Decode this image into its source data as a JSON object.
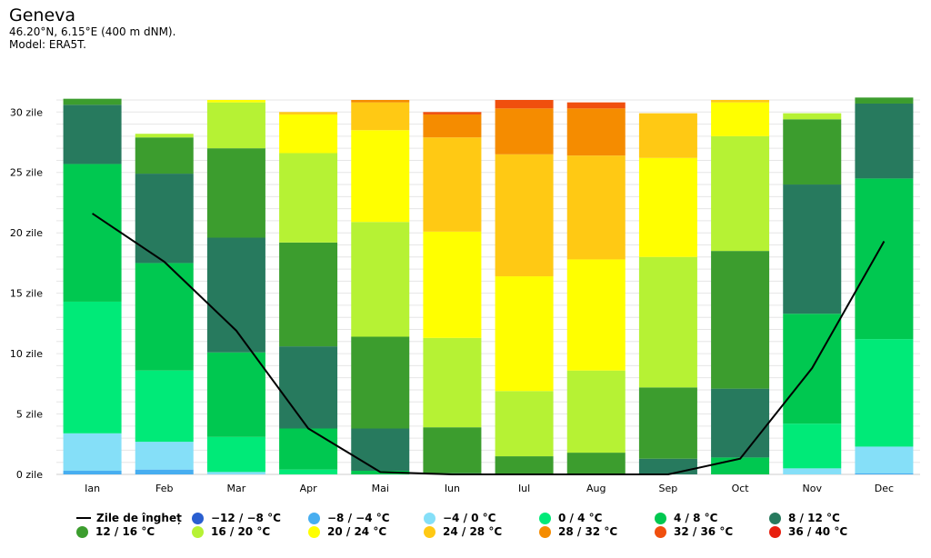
{
  "header": {
    "title": "Geneva",
    "coords": "46.20°N, 6.15°E (400 m dNM).",
    "model": "Model: ERA5T."
  },
  "chart_data": {
    "type": "bar",
    "stacked": true,
    "categories": [
      "Ian",
      "Feb",
      "Mar",
      "Apr",
      "Mai",
      "Iun",
      "Iul",
      "Aug",
      "Sep",
      "Oct",
      "Nov",
      "Dec"
    ],
    "y_ticks": [
      "0 zile",
      "5 zile",
      "10 zile",
      "15 zile",
      "20 zile",
      "25 zile",
      "30 zile"
    ],
    "ylim": [
      0,
      31
    ],
    "series": [
      {
        "name": "−12 / −8 °C",
        "color": "#2a5fd0",
        "values": [
          0,
          0,
          0,
          0,
          0,
          0,
          0,
          0,
          0,
          0,
          0,
          0
        ]
      },
      {
        "name": "−8 / −4 °C",
        "color": "#47aef0",
        "values": [
          0.3,
          0.4,
          0,
          0,
          0,
          0,
          0,
          0,
          0,
          0,
          0,
          0.1
        ]
      },
      {
        "name": "−4 / 0 °C",
        "color": "#85dff8",
        "values": [
          3.1,
          2.3,
          0.2,
          0,
          0,
          0,
          0,
          0,
          0,
          0,
          0.5,
          2.2
        ]
      },
      {
        "name": "0 / 4 °C",
        "color": "#00ea78",
        "values": [
          10.9,
          5.9,
          2.9,
          0.4,
          0,
          0,
          0,
          0,
          0,
          0,
          3.7,
          8.9
        ]
      },
      {
        "name": "4 / 8 °C",
        "color": "#00c850",
        "values": [
          11.4,
          8.9,
          7.0,
          3.4,
          0.3,
          0,
          0,
          0,
          0,
          1.4,
          9.1,
          13.3
        ]
      },
      {
        "name": "8 / 12 °C",
        "color": "#277a5e",
        "values": [
          4.9,
          7.4,
          9.5,
          6.8,
          3.5,
          0.1,
          0,
          0,
          1.3,
          5.7,
          10.7,
          6.2
        ]
      },
      {
        "name": "12 / 16 °C",
        "color": "#3c9d2e",
        "values": [
          0.5,
          3.0,
          7.4,
          8.6,
          7.6,
          3.8,
          1.5,
          1.8,
          5.9,
          11.4,
          5.4,
          0.5
        ]
      },
      {
        "name": "16 / 20 °C",
        "color": "#b6f234",
        "values": [
          0,
          0.3,
          3.8,
          7.4,
          9.5,
          7.4,
          5.4,
          6.8,
          10.8,
          9.5,
          0.5,
          0
        ]
      },
      {
        "name": "20 / 24 °C",
        "color": "#ffff00",
        "values": [
          0,
          0,
          0.2,
          3.2,
          7.6,
          8.8,
          9.5,
          9.2,
          8.2,
          2.8,
          0,
          0
        ]
      },
      {
        "name": "24 / 28 °C",
        "color": "#ffc914",
        "values": [
          0,
          0,
          0,
          0.2,
          2.3,
          7.8,
          10.1,
          8.6,
          3.7,
          0.2,
          0,
          0
        ]
      },
      {
        "name": "28 / 32 °C",
        "color": "#f58c00",
        "values": [
          0,
          0,
          0,
          0,
          0.2,
          1.9,
          3.8,
          3.9,
          0,
          0,
          0,
          0
        ]
      },
      {
        "name": "32 / 36 °C",
        "color": "#f04f0e",
        "values": [
          0,
          0,
          0,
          0,
          0,
          0.2,
          0.7,
          0.5,
          0,
          0,
          0,
          0
        ]
      },
      {
        "name": "36 / 40 °C",
        "color": "#e81f0f",
        "values": [
          0,
          0,
          0,
          0,
          0,
          0,
          0,
          0,
          0,
          0,
          0,
          0
        ]
      }
    ],
    "line": {
      "name": "Zile de îngheț",
      "color": "#000000",
      "values": [
        21.6,
        17.6,
        11.9,
        3.8,
        0.2,
        0,
        0,
        0,
        0,
        1.3,
        8.8,
        19.3
      ]
    },
    "legend_position": "bottom"
  }
}
